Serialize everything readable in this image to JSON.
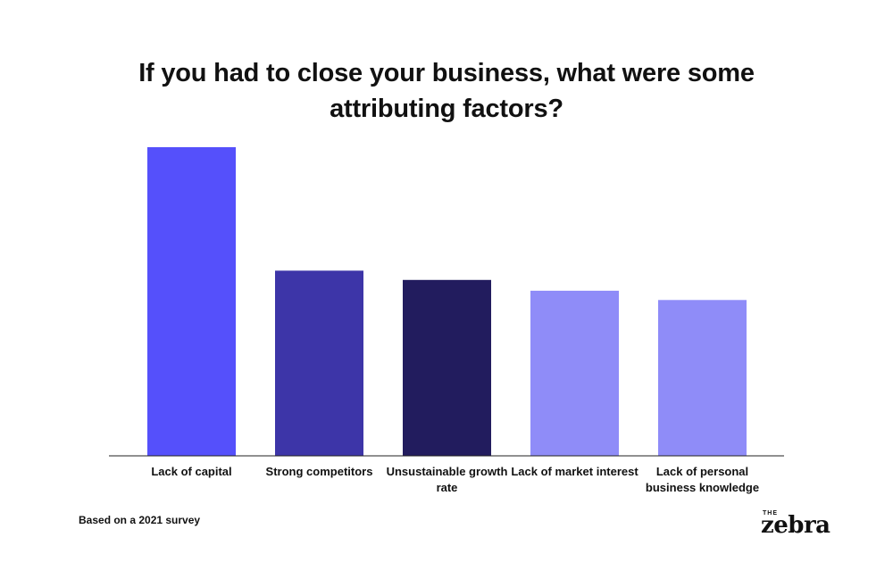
{
  "chart_data": {
    "type": "bar",
    "title": "If you had to close your business, what were some\nattributing factors?",
    "categories": [
      "Lack of capital",
      "Strong competitors",
      "Unsustainable growth rate",
      "Lack of market interest",
      "Lack of personal business knowledge"
    ],
    "values": [
      100,
      60,
      57,
      53.5,
      50.5
    ],
    "colors": [
      "#5550fb",
      "#3d35a8",
      "#221c5e",
      "#8f8cf8",
      "#8f8cf8"
    ],
    "xlabel": "",
    "ylabel": "",
    "ylim": [
      0,
      100
    ],
    "grid": false,
    "legend": "none"
  },
  "footnote": "Based on a 2021 survey",
  "logo": {
    "small": "THE",
    "word": "zebra"
  }
}
